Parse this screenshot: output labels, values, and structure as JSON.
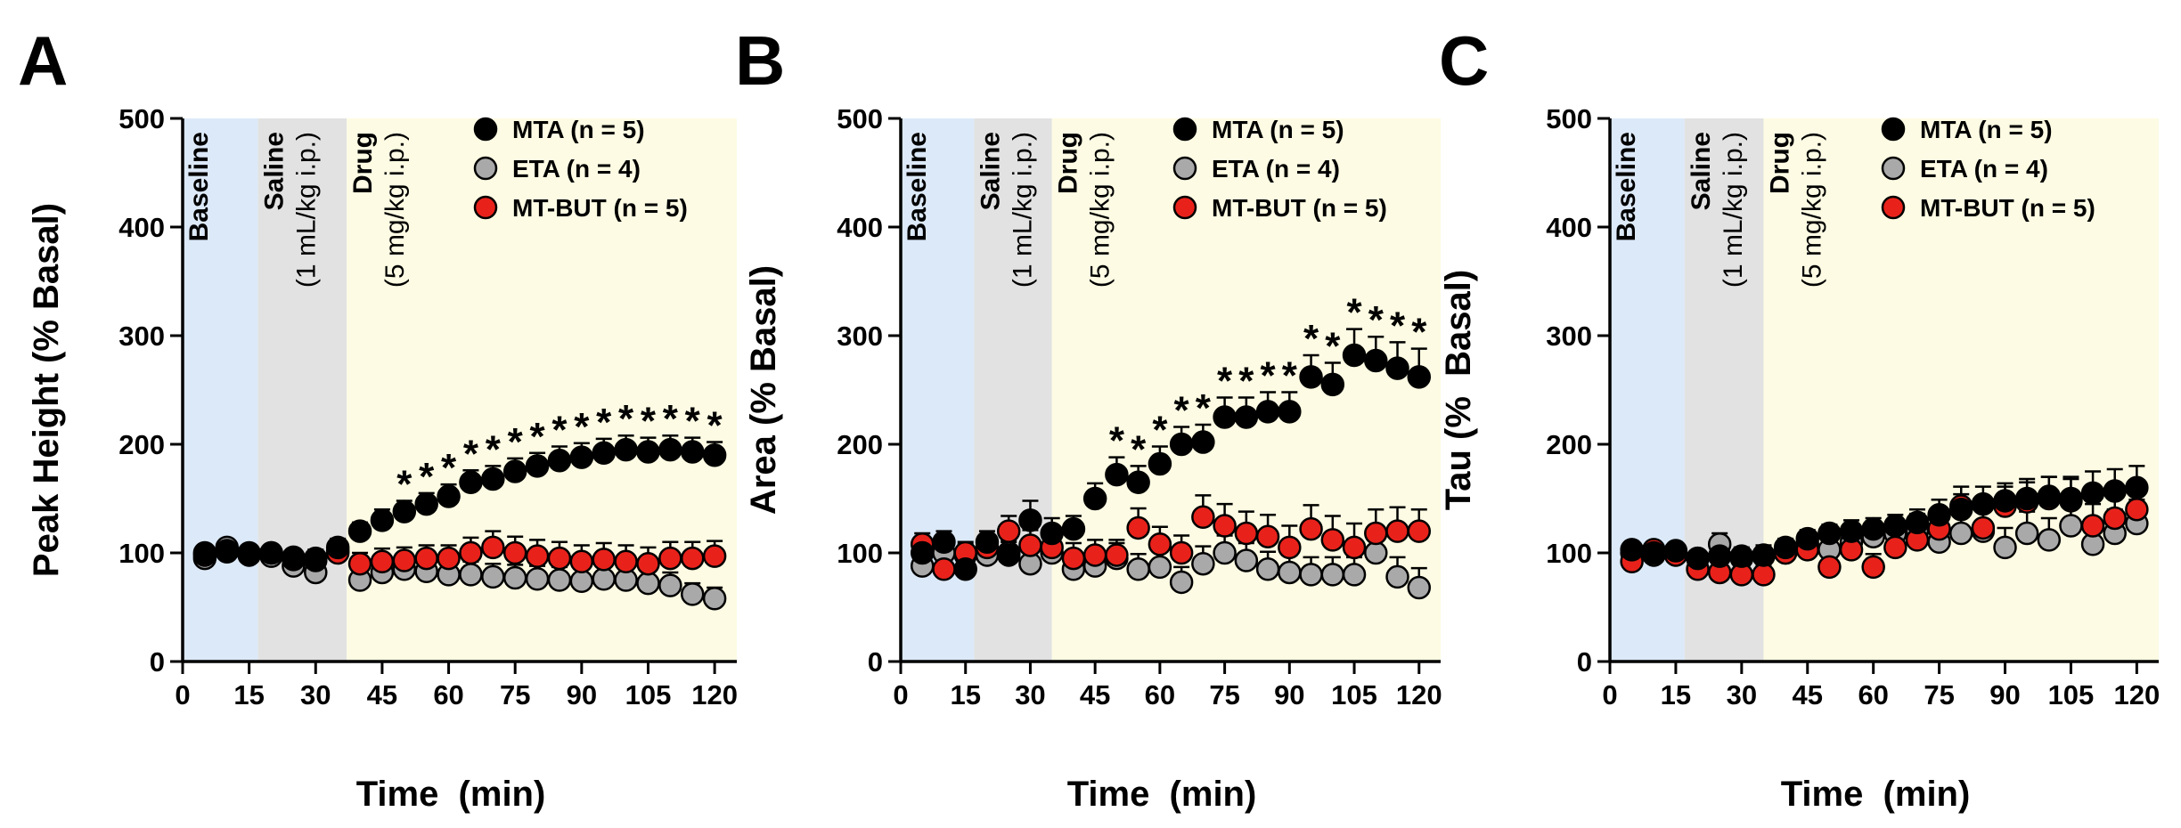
{
  "chart_data": [
    {
      "type": "scatter",
      "panel": "A",
      "xlabel": "Time  (min)",
      "ylabel": "Peak Height (% Basal)",
      "xlim": [
        0,
        125
      ],
      "ylim": [
        0,
        500
      ],
      "xticks": [
        0,
        15,
        30,
        45,
        60,
        75,
        90,
        105,
        120
      ],
      "yticks": [
        0,
        100,
        200,
        300,
        400,
        500
      ],
      "phases": [
        {
          "name": "Baseline",
          "sub": "",
          "start": 0,
          "end": 17,
          "color": "#dce9f8"
        },
        {
          "name": "Saline",
          "sub": "(1 mL/kg i.p.)",
          "start": 17,
          "end": 37,
          "color": "#e2e2e2"
        },
        {
          "name": "Drug",
          "sub": "(5 mg/kg i.p.)",
          "start": 37,
          "end": 125,
          "color": "#fdfbe3"
        }
      ],
      "legend_position": "top-right",
      "x": [
        5,
        10,
        15,
        20,
        25,
        30,
        35,
        40,
        45,
        50,
        55,
        60,
        65,
        70,
        75,
        80,
        85,
        90,
        95,
        100,
        105,
        110,
        115,
        120
      ],
      "series": [
        {
          "name": "MTA (n = 5)",
          "color": "#000000",
          "values": [
            100,
            101,
            100,
            100,
            96,
            93,
            105,
            120,
            130,
            138,
            145,
            152,
            165,
            168,
            175,
            180,
            185,
            188,
            192,
            195,
            193,
            195,
            193,
            190
          ],
          "err": [
            6,
            6,
            5,
            5,
            6,
            8,
            8,
            8,
            10,
            10,
            10,
            11,
            11,
            12,
            12,
            12,
            13,
            13,
            13,
            13,
            13,
            13,
            13,
            12
          ]
        },
        {
          "name": "ETA (n = 4)",
          "color": "#a9a9a9",
          "values": [
            95,
            105,
            98,
            97,
            88,
            82,
            102,
            75,
            82,
            85,
            83,
            80,
            80,
            78,
            77,
            76,
            75,
            74,
            76,
            75,
            72,
            70,
            62,
            58
          ],
          "err": [
            6,
            6,
            6,
            6,
            8,
            8,
            10,
            12,
            12,
            12,
            12,
            12,
            12,
            12,
            12,
            12,
            12,
            12,
            12,
            12,
            12,
            12,
            10,
            10
          ]
        },
        {
          "name": "MT-BUT (n = 5)",
          "color": "#e8221b",
          "values": [
            98,
            102,
            99,
            100,
            94,
            95,
            100,
            90,
            92,
            93,
            95,
            95,
            100,
            105,
            100,
            97,
            95,
            92,
            94,
            92,
            90,
            95,
            95,
            97
          ],
          "err": [
            6,
            6,
            6,
            6,
            8,
            8,
            10,
            10,
            12,
            12,
            12,
            12,
            14,
            15,
            15,
            15,
            15,
            15,
            15,
            15,
            15,
            15,
            15,
            14
          ]
        }
      ],
      "significance": {
        "series": "MTA (n = 5)",
        "marks": [
          "*",
          "*",
          "*",
          "*",
          "*",
          "*",
          "*",
          "*",
          "*",
          "*",
          "*",
          "*",
          "*",
          "*",
          "*"
        ],
        "x": [
          50,
          55,
          60,
          65,
          70,
          75,
          80,
          85,
          90,
          95,
          100,
          105,
          110,
          115,
          120
        ]
      }
    },
    {
      "type": "scatter",
      "panel": "B",
      "xlabel": "Time  (min)",
      "ylabel": "Area (% Basal)",
      "xlim": [
        0,
        125
      ],
      "ylim": [
        0,
        500
      ],
      "xticks": [
        0,
        15,
        30,
        45,
        60,
        75,
        90,
        105,
        120
      ],
      "yticks": [
        0,
        100,
        200,
        300,
        400,
        500
      ],
      "phases": [
        {
          "name": "Baseline",
          "sub": "",
          "start": 0,
          "end": 17,
          "color": "#dce9f8"
        },
        {
          "name": "Saline",
          "sub": "(1 mL/kg i.p.)",
          "start": 17,
          "end": 35,
          "color": "#e2e2e2"
        },
        {
          "name": "Drug",
          "sub": "(5 mg/kg i.p.)",
          "start": 35,
          "end": 125,
          "color": "#fdfbe3"
        }
      ],
      "legend_position": "top-right",
      "x": [
        5,
        10,
        15,
        20,
        25,
        30,
        35,
        40,
        45,
        50,
        55,
        60,
        65,
        70,
        75,
        80,
        85,
        90,
        95,
        100,
        105,
        110,
        115,
        120
      ],
      "series": [
        {
          "name": "MTA (n = 5)",
          "color": "#000000",
          "values": [
            100,
            110,
            85,
            110,
            98,
            130,
            118,
            122,
            150,
            172,
            165,
            182,
            200,
            202,
            225,
            225,
            230,
            230,
            262,
            255,
            282,
            277,
            270,
            262
          ],
          "err": [
            10,
            10,
            8,
            10,
            12,
            18,
            14,
            12,
            14,
            16,
            15,
            16,
            16,
            16,
            18,
            18,
            18,
            18,
            20,
            20,
            24,
            22,
            24,
            26
          ]
        },
        {
          "name": "ETA (n = 4)",
          "color": "#a9a9a9",
          "values": [
            88,
            100,
            98,
            98,
            100,
            90,
            100,
            85,
            88,
            95,
            85,
            87,
            73,
            90,
            100,
            93,
            85,
            82,
            80,
            80,
            80,
            100,
            78,
            68
          ],
          "err": [
            10,
            10,
            10,
            10,
            12,
            12,
            12,
            12,
            12,
            14,
            14,
            14,
            14,
            16,
            16,
            16,
            16,
            16,
            16,
            16,
            16,
            18,
            18,
            18
          ]
        },
        {
          "name": "MT-BUT (n = 5)",
          "color": "#e8221b",
          "values": [
            108,
            85,
            100,
            105,
            120,
            107,
            105,
            95,
            98,
            98,
            123,
            108,
            100,
            133,
            125,
            118,
            115,
            105,
            122,
            112,
            105,
            118,
            120,
            120
          ],
          "err": [
            10,
            10,
            10,
            10,
            14,
            14,
            14,
            14,
            14,
            14,
            18,
            16,
            16,
            20,
            20,
            20,
            20,
            20,
            22,
            22,
            22,
            22,
            22,
            20
          ]
        }
      ],
      "significance": {
        "series": "MTA (n = 5)",
        "marks": [
          "*",
          "*",
          "*",
          "*",
          "*",
          "*",
          "*",
          "*",
          "*",
          "*",
          "*",
          "*",
          "*",
          "*",
          "*"
        ],
        "x": [
          50,
          55,
          60,
          65,
          70,
          75,
          80,
          85,
          90,
          95,
          100,
          105,
          110,
          115,
          120
        ]
      }
    },
    {
      "type": "scatter",
      "panel": "C",
      "xlabel": "Time  (min)",
      "ylabel": "Tau (%  Basal)",
      "xlim": [
        0,
        125
      ],
      "ylim": [
        0,
        500
      ],
      "xticks": [
        0,
        15,
        30,
        45,
        60,
        75,
        90,
        105,
        120
      ],
      "yticks": [
        0,
        100,
        200,
        300,
        400,
        500
      ],
      "phases": [
        {
          "name": "Baseline",
          "sub": "",
          "start": 0,
          "end": 17,
          "color": "#dce9f8"
        },
        {
          "name": "Saline",
          "sub": "(1 mL/kg i.p.)",
          "start": 17,
          "end": 35,
          "color": "#e2e2e2"
        },
        {
          "name": "Drug",
          "sub": "(5 mg/kg i.p.)",
          "start": 35,
          "end": 125,
          "color": "#fdfbe3"
        }
      ],
      "legend_position": "top-right",
      "x": [
        5,
        10,
        15,
        20,
        25,
        30,
        35,
        40,
        45,
        50,
        55,
        60,
        65,
        70,
        75,
        80,
        85,
        90,
        95,
        100,
        105,
        110,
        115,
        120
      ],
      "series": [
        {
          "name": "MTA (n = 5)",
          "color": "#000000",
          "values": [
            103,
            100,
            102,
            95,
            97,
            97,
            98,
            105,
            113,
            118,
            120,
            122,
            125,
            128,
            135,
            140,
            145,
            148,
            150,
            152,
            150,
            155,
            157,
            160
          ],
          "err": [
            6,
            6,
            6,
            6,
            6,
            6,
            8,
            8,
            8,
            8,
            10,
            10,
            10,
            12,
            14,
            14,
            16,
            16,
            18,
            18,
            20,
            20,
            20,
            20
          ]
        },
        {
          "name": "ETA (n = 4)",
          "color": "#a9a9a9",
          "values": [
            100,
            98,
            100,
            95,
            108,
            95,
            97,
            100,
            108,
            103,
            110,
            115,
            118,
            120,
            110,
            118,
            120,
            105,
            118,
            112,
            125,
            108,
            118,
            127
          ],
          "err": [
            6,
            6,
            6,
            6,
            10,
            10,
            10,
            10,
            12,
            12,
            14,
            14,
            14,
            16,
            16,
            18,
            18,
            18,
            20,
            20,
            22,
            22,
            22,
            22
          ]
        },
        {
          "name": "MT-BUT (n = 5)",
          "color": "#e8221b",
          "values": [
            92,
            103,
            98,
            85,
            82,
            80,
            80,
            100,
            103,
            87,
            103,
            87,
            105,
            112,
            122,
            143,
            123,
            143,
            147,
            150,
            148,
            125,
            132,
            140
          ],
          "err": [
            6,
            6,
            6,
            8,
            8,
            8,
            8,
            10,
            10,
            12,
            12,
            12,
            14,
            14,
            16,
            18,
            18,
            18,
            18,
            20,
            20,
            20,
            20,
            20
          ]
        }
      ],
      "significance": null
    }
  ]
}
